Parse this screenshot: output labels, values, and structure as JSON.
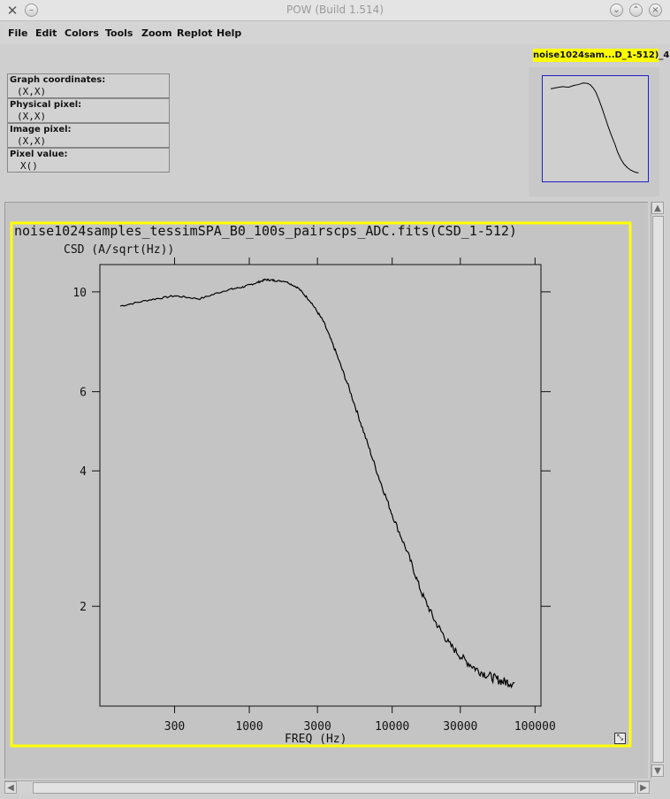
{
  "window": {
    "title": "POW (Build 1.514)",
    "app_icon": "x-tools-icon",
    "buttons": [
      "minimize-icon",
      "maximize-icon",
      "close-icon"
    ]
  },
  "menu": [
    "File",
    "Edit",
    "Colors",
    "Tools",
    "Zoom",
    "Replot",
    "Help"
  ],
  "coordinates": [
    {
      "label": "Graph coordinates:",
      "value": "(X,X)"
    },
    {
      "label": "Physical pixel:",
      "value": "(X,X)"
    },
    {
      "label": "Image pixel:",
      "value": "(X,X)"
    },
    {
      "label": "Pixel value:",
      "value": "X()"
    }
  ],
  "thumbnail": {
    "label": "noise1024sam...D_1-512)_4"
  },
  "colors": {
    "highlight": "#ffff00",
    "thumb_border": "#2020c8",
    "curve": "#000000"
  },
  "chart_data": {
    "type": "line",
    "title": "noise1024samples_tessimSPA_B0_100s_pairscps_ADC.fits(CSD_1-512)",
    "xlabel": "FREQ (Hz)",
    "ylabel": "CSD (A/sqrt(Hz))",
    "xscale": "log",
    "yscale": "log",
    "xlim": [
      90,
      110000
    ],
    "ylim": [
      1.2,
      11.5
    ],
    "xticks": [
      300,
      1000,
      3000,
      10000,
      30000,
      100000
    ],
    "xtick_labels": [
      "300",
      "1000",
      "3000",
      "10000",
      "30000",
      "100000"
    ],
    "yticks": [
      2,
      4,
      6,
      10
    ],
    "ytick_labels": [
      "2",
      "4",
      "6",
      "10"
    ],
    "grid": false,
    "series": [
      {
        "x": [
          125,
          200,
          300,
          450,
          700,
          900,
          1100,
          1300,
          1500,
          1800,
          2200,
          2700,
          3300,
          4000,
          5000,
          6300,
          8000,
          10000,
          13000,
          16000,
          20000,
          25000,
          32000,
          40000,
          50000,
          60000,
          72000
        ],
        "y": [
          9.3,
          9.6,
          9.8,
          9.65,
          10.1,
          10.25,
          10.45,
          10.65,
          10.6,
          10.55,
          10.2,
          9.5,
          8.6,
          7.4,
          6.1,
          4.9,
          3.9,
          3.2,
          2.6,
          2.15,
          1.85,
          1.65,
          1.52,
          1.44,
          1.39,
          1.36,
          1.35
        ]
      }
    ]
  }
}
